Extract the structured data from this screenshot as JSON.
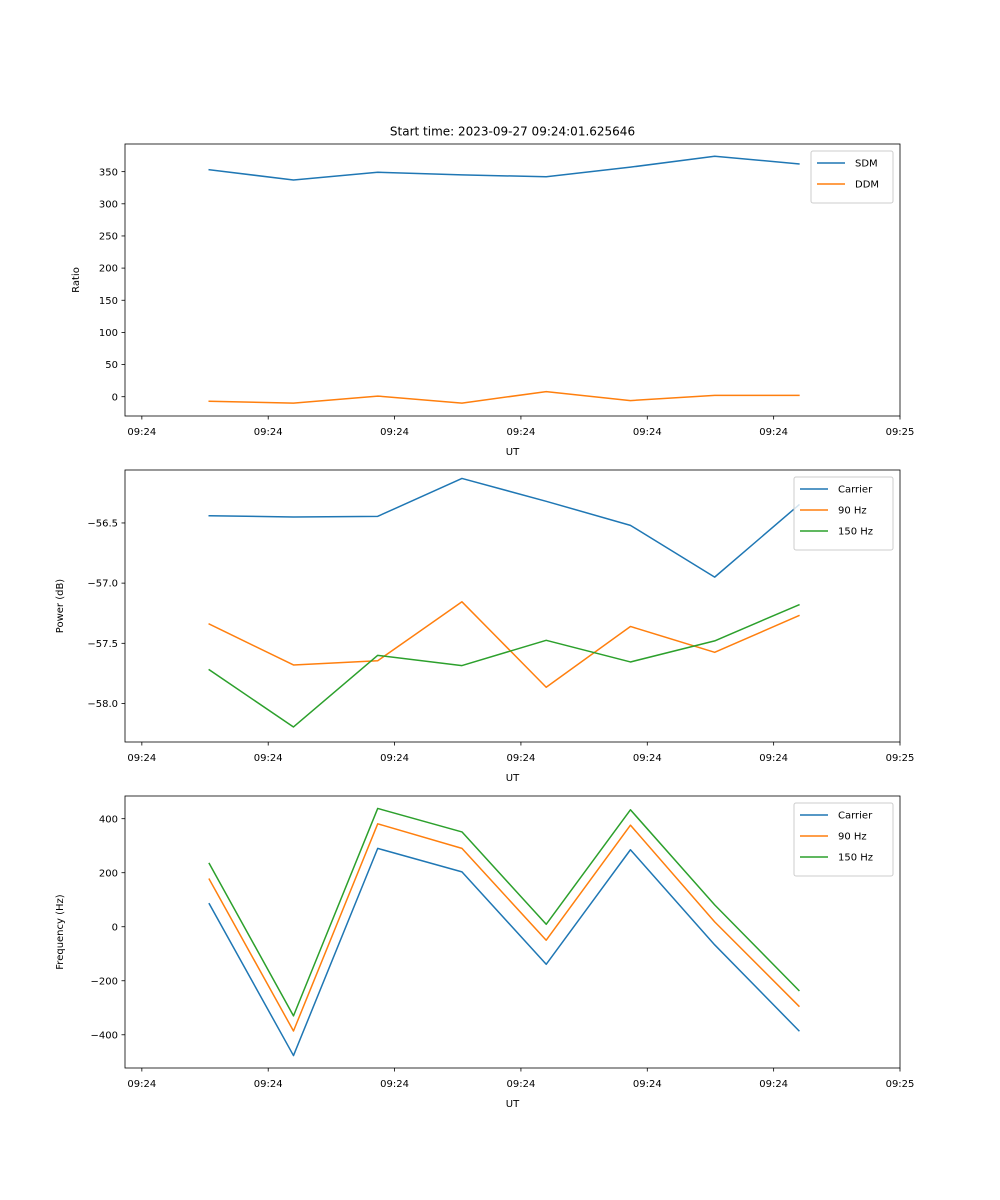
{
  "chart_data": [
    {
      "type": "line",
      "title": "Start time: 2023-09-27 09:24:01.625646",
      "xlabel": "UT",
      "ylabel": "Ratio",
      "xlim": [
        -0.2,
        9.0
      ],
      "ylim": [
        -30,
        393
      ],
      "x": [
        0.8,
        1.8,
        2.8,
        3.8,
        4.8,
        5.8,
        6.8,
        7.8
      ],
      "xticks": [
        0,
        1.5,
        3,
        4.5,
        6,
        7.5,
        9
      ],
      "xtick_labels": [
        "09:24",
        "09:24",
        "09:24",
        "09:24",
        "09:24",
        "09:24",
        "09:25"
      ],
      "yticks": [
        0,
        50,
        100,
        150,
        200,
        250,
        300,
        350
      ],
      "ytick_labels": [
        "0",
        "50",
        "100",
        "150",
        "200",
        "250",
        "300",
        "350"
      ],
      "legend": "top-right",
      "series": [
        {
          "name": "SDM",
          "color": "#1f77b4",
          "values": [
            353,
            337,
            349,
            345,
            342,
            357,
            374,
            362
          ]
        },
        {
          "name": "DDM",
          "color": "#ff7f0e",
          "values": [
            -7,
            -10,
            1,
            -10,
            8,
            -6,
            2,
            2
          ]
        }
      ]
    },
    {
      "type": "line",
      "title": "",
      "xlabel": "UT",
      "ylabel": "Power (dB)",
      "xlim": [
        -0.2,
        9.0
      ],
      "ylim": [
        -58.32,
        -56.06
      ],
      "x": [
        0.8,
        1.8,
        2.8,
        3.8,
        4.8,
        5.8,
        6.8,
        7.8
      ],
      "xticks": [
        0,
        1.5,
        3,
        4.5,
        6,
        7.5,
        9
      ],
      "xtick_labels": [
        "09:24",
        "09:24",
        "09:24",
        "09:24",
        "09:24",
        "09:24",
        "09:25"
      ],
      "yticks": [
        -58.0,
        -57.5,
        -57.0,
        -56.5
      ],
      "ytick_labels": [
        "−58.0",
        "−57.5",
        "−57.0",
        "−56.5"
      ],
      "legend": "top-right",
      "series": [
        {
          "name": "Carrier",
          "color": "#1f77b4",
          "values": [
            -56.44,
            -56.45,
            -56.445,
            -56.13,
            -56.32,
            -56.52,
            -56.95,
            -56.35
          ]
        },
        {
          "name": "90 Hz",
          "color": "#ff7f0e",
          "values": [
            -57.34,
            -57.68,
            -57.645,
            -57.155,
            -57.865,
            -57.36,
            -57.575,
            -57.27
          ]
        },
        {
          "name": "150 Hz",
          "color": "#2ca02c",
          "values": [
            -57.72,
            -58.195,
            -57.6,
            -57.685,
            -57.475,
            -57.655,
            -57.48,
            -57.18
          ]
        }
      ]
    },
    {
      "type": "line",
      "title": "",
      "xlabel": "UT",
      "ylabel": "Frequency (Hz)",
      "xlim": [
        -0.2,
        9.0
      ],
      "ylim": [
        -523,
        484
      ],
      "x": [
        0.8,
        1.8,
        2.8,
        3.8,
        4.8,
        5.8,
        6.8,
        7.8
      ],
      "xticks": [
        0,
        1.5,
        3,
        4.5,
        6,
        7.5,
        9
      ],
      "xtick_labels": [
        "09:24",
        "09:24",
        "09:24",
        "09:24",
        "09:24",
        "09:24",
        "09:25"
      ],
      "yticks": [
        -400,
        -200,
        0,
        200,
        400
      ],
      "ytick_labels": [
        "−400",
        "−200",
        "0",
        "200",
        "400"
      ],
      "legend": "top-right",
      "series": [
        {
          "name": "Carrier",
          "color": "#1f77b4",
          "values": [
            85,
            -477,
            290,
            203,
            -139,
            285,
            -67,
            -385
          ]
        },
        {
          "name": "90 Hz",
          "color": "#ff7f0e",
          "values": [
            176,
            -386,
            381,
            290,
            -50,
            376,
            18,
            -294
          ]
        },
        {
          "name": "150 Hz",
          "color": "#2ca02c",
          "values": [
            234,
            -330,
            438,
            351,
            9,
            433,
            81,
            -236
          ]
        }
      ]
    }
  ]
}
